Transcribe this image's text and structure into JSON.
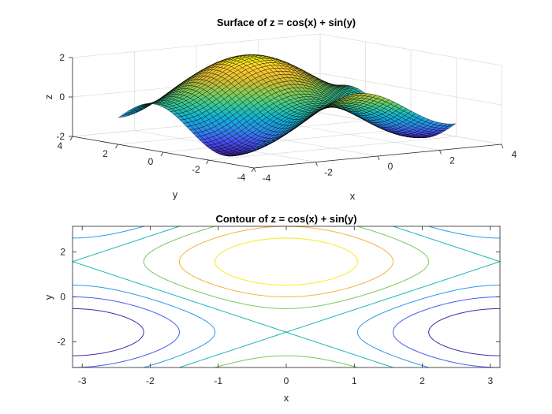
{
  "chart_data": [
    {
      "type": "surface",
      "title": "Surface of z = cos(x) + sin(y)",
      "xlabel": "x",
      "ylabel": "y",
      "zlabel": "z",
      "xlim": [
        -4,
        4
      ],
      "ylim": [
        -4,
        4
      ],
      "zlim": [
        -2,
        2
      ],
      "xticks": [
        "-4",
        "-2",
        "0",
        "2",
        "4"
      ],
      "yticks": [
        "-4",
        "-2",
        "0",
        "2",
        "4"
      ],
      "zticks": [
        "-2",
        "0",
        "2"
      ],
      "domain": {
        "x": [
          -3.1416,
          3.1416
        ],
        "y": [
          -3.1416,
          3.1416
        ]
      },
      "colormap": "parula",
      "grid": true
    },
    {
      "type": "contour",
      "title": "Contour of z = cos(x) + sin(y)",
      "xlabel": "x",
      "ylabel": "y",
      "xlim": [
        -3.1416,
        3.1416
      ],
      "ylim": [
        -3.1416,
        3.1416
      ],
      "xticks": [
        "-3",
        "-2",
        "-1",
        "0",
        "1",
        "2",
        "3"
      ],
      "yticks": [
        "-2",
        "0",
        "2"
      ],
      "levels": [
        -1.5,
        -1,
        -0.5,
        0,
        0.5,
        1,
        1.5
      ],
      "level_colors": [
        "#3e2ba6",
        "#4a5cf0",
        "#2e9ae8",
        "#1db8b8",
        "#7cc85a",
        "#f5b43c",
        "#f2ee1a"
      ],
      "grid": false
    }
  ]
}
